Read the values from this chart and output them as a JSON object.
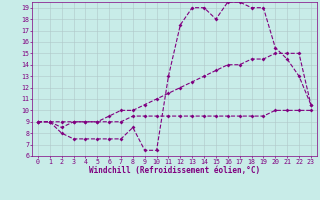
{
  "xlabel": "Windchill (Refroidissement éolien,°C)",
  "xlim": [
    -0.5,
    23.5
  ],
  "ylim": [
    6,
    19.5
  ],
  "xticks": [
    0,
    1,
    2,
    3,
    4,
    5,
    6,
    7,
    8,
    9,
    10,
    11,
    12,
    13,
    14,
    15,
    16,
    17,
    18,
    19,
    20,
    21,
    22,
    23
  ],
  "yticks": [
    6,
    7,
    8,
    9,
    10,
    11,
    12,
    13,
    14,
    15,
    16,
    17,
    18,
    19
  ],
  "bg_color": "#c8ece8",
  "line_color": "#800080",
  "grid_color": "#b0c8c8",
  "line1_x": [
    0,
    1,
    2,
    3,
    4,
    5,
    6,
    7,
    8,
    9,
    10,
    11,
    12,
    13,
    14,
    15,
    16,
    17,
    18,
    19,
    20,
    21,
    22,
    23
  ],
  "line1_y": [
    9,
    9,
    8,
    7.5,
    7.5,
    7.5,
    7.5,
    7.5,
    8.5,
    6.5,
    6.5,
    13,
    17.5,
    19,
    19,
    18,
    19.5,
    19.5,
    19,
    19,
    15.5,
    14.5,
    13,
    10.5
  ],
  "line2_x": [
    0,
    1,
    2,
    3,
    4,
    5,
    6,
    7,
    8,
    9,
    10,
    11,
    12,
    13,
    14,
    15,
    16,
    17,
    18,
    19,
    20,
    21,
    22,
    23
  ],
  "line2_y": [
    9,
    9,
    8.5,
    9,
    9,
    9,
    9.5,
    10,
    10,
    10.5,
    11,
    11.5,
    12,
    12.5,
    13,
    13.5,
    14,
    14,
    14.5,
    14.5,
    15,
    15,
    15,
    10.5
  ],
  "line3_x": [
    0,
    1,
    2,
    3,
    4,
    5,
    6,
    7,
    8,
    9,
    10,
    11,
    12,
    13,
    14,
    15,
    16,
    17,
    18,
    19,
    20,
    21,
    22,
    23
  ],
  "line3_y": [
    9,
    9,
    9,
    9,
    9,
    9,
    9,
    9,
    9.5,
    9.5,
    9.5,
    9.5,
    9.5,
    9.5,
    9.5,
    9.5,
    9.5,
    9.5,
    9.5,
    9.5,
    10,
    10,
    10,
    10
  ],
  "markersize": 2.0,
  "linewidth": 0.8,
  "tick_fontsize": 4.8,
  "label_fontsize": 5.5
}
